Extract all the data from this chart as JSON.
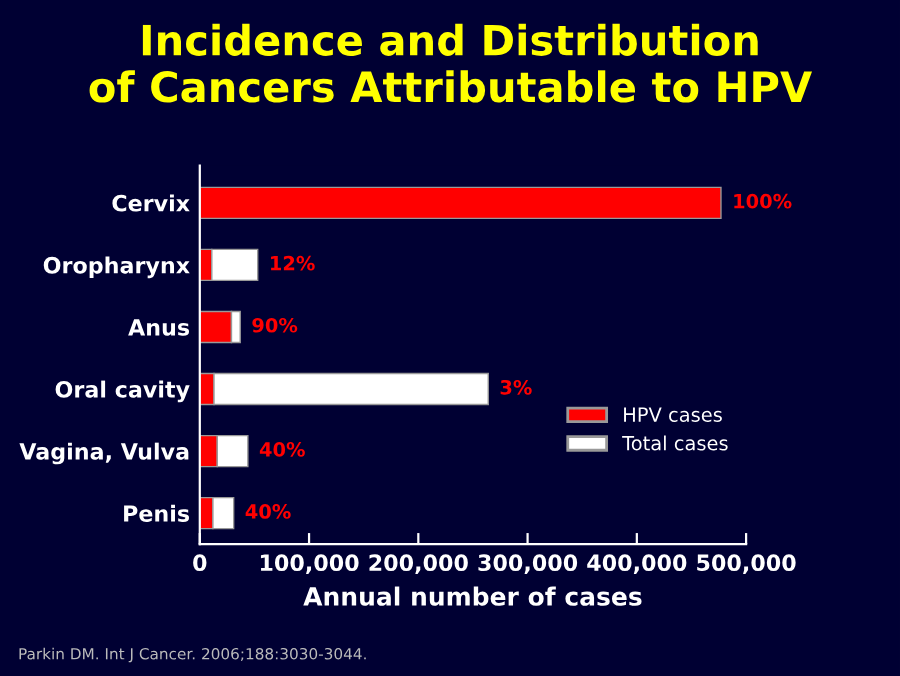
{
  "chart_data": {
    "type": "bar",
    "orientation": "horizontal",
    "stacked": true,
    "title": "Incidence and Distribution\nof Cancers Attributable to HPV",
    "xlabel": "Annual number of cases",
    "categories": [
      "Cervix",
      "Oropharynx",
      "Anus",
      "Oral cavity",
      "Vagina, Vulva",
      "Penis"
    ],
    "series": [
      {
        "name": "HPV cases",
        "color": "#ff0000",
        "values": [
          477000,
          11000,
          29000,
          13000,
          16000,
          12000
        ]
      },
      {
        "name": "Total cases",
        "color": "#ffffff",
        "values": [
          null,
          42000,
          8000,
          251000,
          28000,
          19000
        ]
      }
    ],
    "xlim": [
      0,
      500000
    ],
    "xticks": [
      {
        "value": 0,
        "label": "0"
      },
      {
        "value": 100000,
        "label": "100,000"
      },
      {
        "value": 200000,
        "label": "200,000"
      },
      {
        "value": 300000,
        "label": "300,000"
      },
      {
        "value": 400000,
        "label": "400,000"
      },
      {
        "value": 500000,
        "label": "500,000"
      }
    ],
    "grid": false,
    "legend": "right",
    "annotations": [
      {
        "text": "100%",
        "x": 477000,
        "y": "Cervix"
      },
      {
        "text": "12%",
        "x": 53000,
        "y": "Oropharynx"
      },
      {
        "text": "90%",
        "x": 37000,
        "y": "Anus"
      },
      {
        "text": "3%",
        "x": 264000,
        "y": "Oral cavity"
      },
      {
        "text": "40%",
        "x": 44000,
        "y": "Vagina, Vulva"
      },
      {
        "text": "40%",
        "x": 31000,
        "y": "Penis"
      },
      "Parkin DM. Int J Cancer. 2006;188:3030-3044."
    ]
  }
}
